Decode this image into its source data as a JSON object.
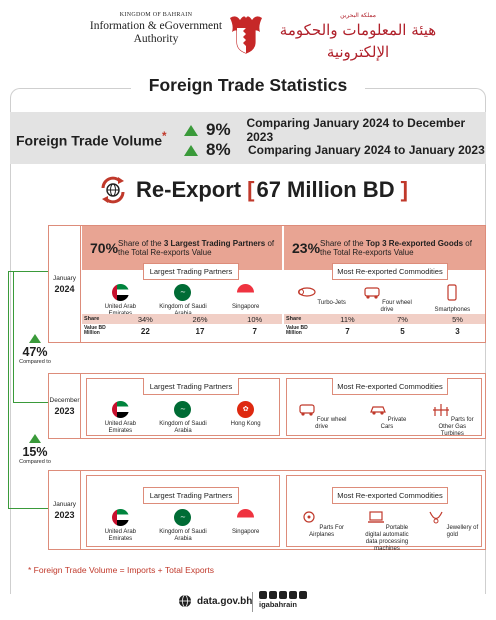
{
  "header": {
    "kingdom_en": "KINGDOM OF BAHRAIN",
    "authority_en": "Information & eGovernment Authority",
    "kingdom_ar": "مملكة البحرين",
    "authority_ar": "هيئة المعلومات والحكومة الإلكترونية"
  },
  "title": "Foreign Trade Statistics",
  "volume": {
    "label": "Foreign Trade Volume",
    "asterisk": "*",
    "rows": [
      {
        "pct": "9%",
        "text": "Comparing January 2024 to December 2023"
      },
      {
        "pct": "8%",
        "text": "Comparing January  2024 to January  2023"
      }
    ]
  },
  "reexport": {
    "title": "Re-Export",
    "open": "[",
    "value": "67 Million BD",
    "close": "]"
  },
  "summary": {
    "partners_pct": "70%",
    "partners_desc_1": "Share of the ",
    "partners_desc_b": "3 Largest Trading Partners",
    "partners_desc_2": " of the Total Re-exports Value",
    "goods_pct": "23%",
    "goods_desc_1": "Share of the ",
    "goods_desc_b": "Top 3 Re-exported Goods",
    "goods_desc_2": " of the Total Re-exports Value"
  },
  "labels": {
    "partners": "Largest Trading Partners",
    "commodities": "Most Re-exported Commodities",
    "share": "Share",
    "value": "Value BD Million"
  },
  "periods": [
    {
      "month": "January",
      "year": "2024",
      "partners": [
        {
          "name": "United Arab Emirates",
          "flag": "uae",
          "share": "34%",
          "value": "22"
        },
        {
          "name": "Kingdom of Saudi Arabia",
          "flag": "ksa",
          "share": "26%",
          "value": "17"
        },
        {
          "name": "Singapore",
          "flag": "sgp",
          "share": "10%",
          "value": "7"
        }
      ],
      "goods": [
        {
          "name": "Turbo-Jets",
          "icon": "turbojet-icon",
          "share": "11%",
          "value": "7"
        },
        {
          "name": "Four wheel drive",
          "icon": "suv-icon",
          "share": "7%",
          "value": "5"
        },
        {
          "name": "Smartphones",
          "icon": "smartphone-icon",
          "share": "5%",
          "value": "3"
        }
      ]
    },
    {
      "month": "December",
      "year": "2023",
      "partners": [
        {
          "name": "United Arab Emirates",
          "flag": "uae"
        },
        {
          "name": "Kingdom of Saudi Arabia",
          "flag": "ksa"
        },
        {
          "name": "Hong Kong",
          "flag": "hk"
        }
      ],
      "goods": [
        {
          "name": "Four wheel drive",
          "icon": "suv-icon"
        },
        {
          "name": "Private Cars",
          "icon": "car-icon"
        },
        {
          "name": "Parts for Other Gas Turbines",
          "icon": "turbine-parts-icon"
        }
      ]
    },
    {
      "month": "January",
      "year": "2023",
      "partners": [
        {
          "name": "United Arab Emirates",
          "flag": "uae"
        },
        {
          "name": "Kingdom of Saudi Arabia",
          "flag": "ksa"
        },
        {
          "name": "Singapore",
          "flag": "sgp"
        }
      ],
      "goods": [
        {
          "name": "Parts For Airplanes",
          "icon": "airplane-parts-icon"
        },
        {
          "name": "Portable digital automatic data processing machines",
          "icon": "laptop-icon"
        },
        {
          "name": "Jewellery of gold",
          "icon": "jewellery-icon"
        }
      ]
    }
  ],
  "comparisons": [
    {
      "pct": "47%",
      "text": "Compared to"
    },
    {
      "pct": "15%",
      "text": "Compared to"
    }
  ],
  "footnote": "*  Foreign Trade Volume = Imports + Total Exports",
  "footer": {
    "site": "data.gov.bh",
    "handle": "igabahrain"
  },
  "colors": {
    "accent_red": "#c0392b",
    "salmon": "#e8a493",
    "green": "#3a9a3a",
    "band_grey": "#e3e3e3"
  }
}
